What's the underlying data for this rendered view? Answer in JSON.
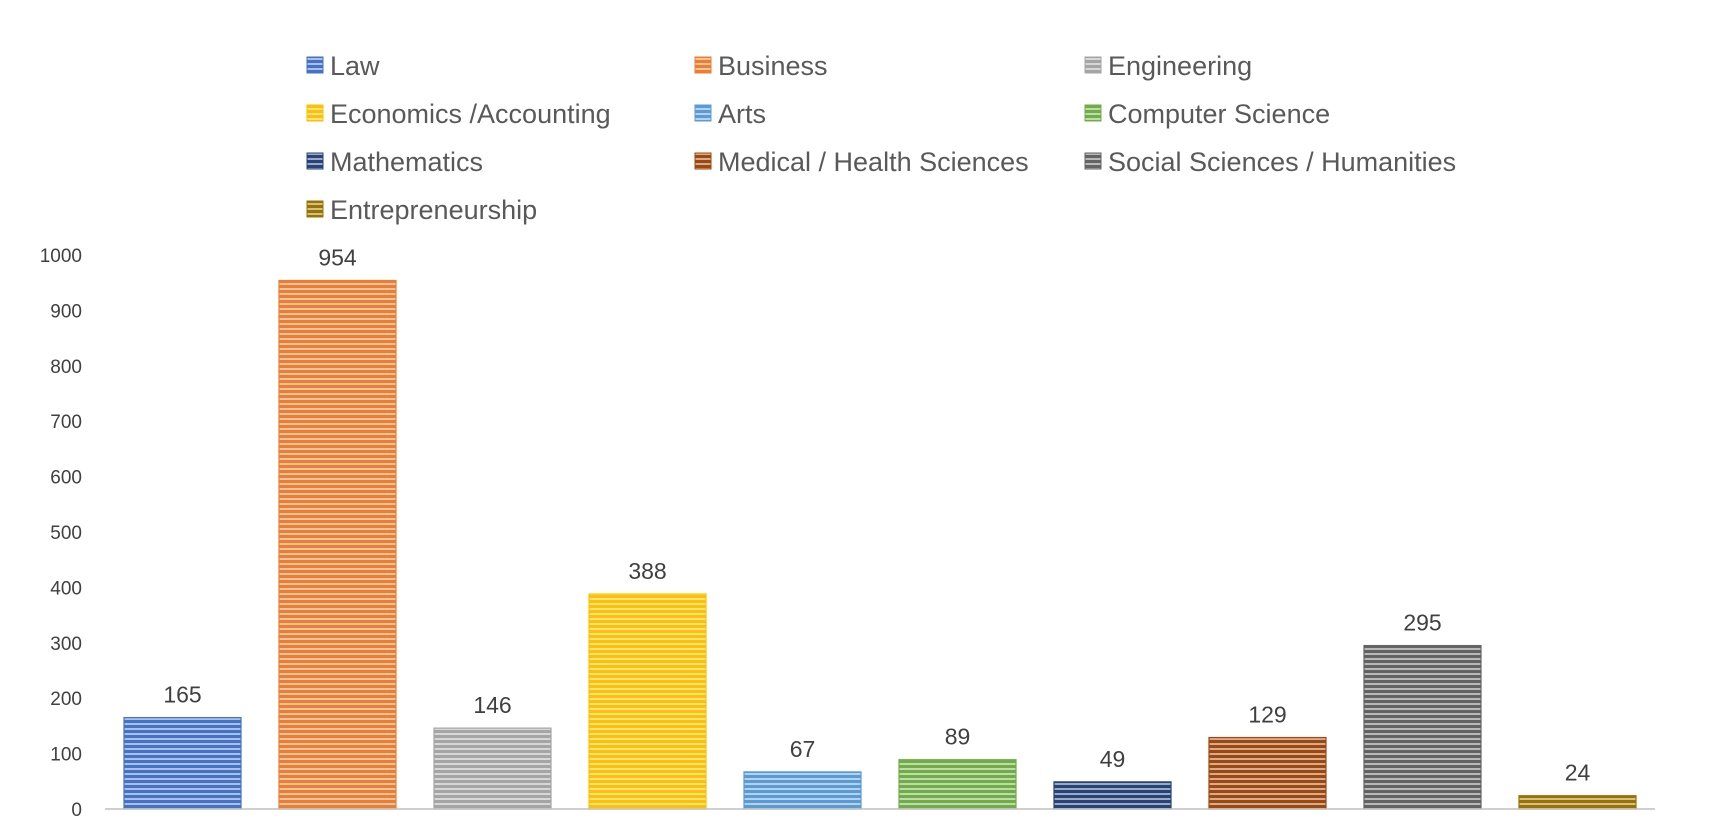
{
  "chart_data": {
    "type": "bar",
    "title": "",
    "xlabel": "",
    "ylabel": "",
    "ylim": [
      0,
      1000
    ],
    "yticks": [
      0,
      100,
      200,
      300,
      400,
      500,
      600,
      700,
      800,
      900,
      1000
    ],
    "grid": false,
    "legend_position": "top",
    "bar_pattern": "horizontal-stripes",
    "categories": [
      "Law",
      "Business",
      "Engineering",
      "Economics /Accounting",
      "Arts",
      "Computer Science",
      "Mathematics",
      "Medical / Health Sciences",
      "Social Sciences / Humanities",
      "Entrepreneurship"
    ],
    "values": [
      165,
      954,
      146,
      388,
      67,
      89,
      49,
      129,
      295,
      24
    ],
    "data_labels": [
      "165",
      "954",
      "146",
      "388",
      "67",
      "89",
      "49",
      "129",
      "295",
      "24"
    ],
    "colors": [
      "#4472C4",
      "#ED7D31",
      "#A5A5A5",
      "#FFC000",
      "#5B9BD5",
      "#70AD47",
      "#264478",
      "#9E480E",
      "#636363",
      "#997300"
    ]
  }
}
